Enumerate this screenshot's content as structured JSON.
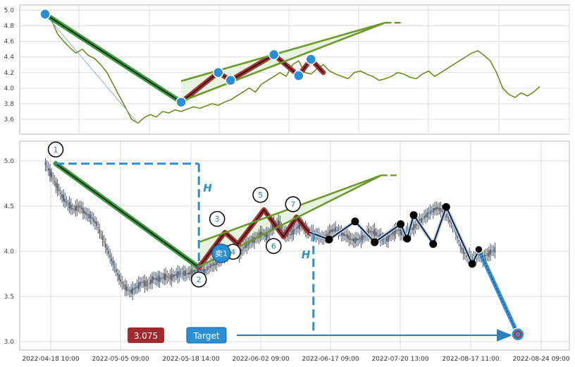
{
  "chart_data": [
    {
      "type": "line",
      "panel": "overview",
      "ylim": [
        3.5,
        5.05
      ],
      "y_ticks": [
        "3.6",
        "3.8",
        "4.0",
        "4.2",
        "4.4",
        "4.6",
        "4.8",
        "5.0"
      ],
      "y_tick_values": [
        3.6,
        3.8,
        4.0,
        4.2,
        4.4,
        4.6,
        4.8,
        5.0
      ],
      "series": [
        {
          "values": [
            4.95,
            4.88,
            4.7,
            4.6,
            4.52,
            4.45,
            4.5,
            4.42,
            4.38,
            4.3,
            4.2,
            4.05,
            3.9,
            3.75,
            3.6,
            3.55,
            3.62,
            3.66,
            3.63,
            3.7,
            3.68,
            3.72,
            3.7,
            3.73,
            3.76,
            3.74,
            3.77,
            3.8,
            3.78,
            3.82,
            3.85,
            3.9,
            3.95,
            4.0,
            3.95,
            4.05,
            4.1,
            4.15,
            4.2,
            4.15,
            4.3,
            4.35,
            4.2,
            4.18,
            4.25,
            4.3,
            4.22,
            4.18,
            4.15,
            4.12,
            4.2,
            4.22,
            4.18,
            4.15,
            4.1,
            4.12,
            4.15,
            4.2,
            4.18,
            4.14,
            4.12,
            4.18,
            4.22,
            4.15,
            4.2,
            4.25,
            4.3,
            4.35,
            4.4,
            4.45,
            4.48,
            4.42,
            4.35,
            4.2,
            4.0,
            3.92,
            3.88,
            3.94,
            3.9,
            3.95,
            4.02
          ]
        }
      ],
      "segments": [
        {
          "role": "swing-down",
          "color": "#3a9a3a",
          "points": [
            [
              0,
              4.95
            ],
            [
              22,
              3.82
            ]
          ]
        },
        {
          "role": "pattern",
          "color": "#a83232",
          "points": [
            [
              22,
              3.82
            ],
            [
              28,
              4.2
            ],
            [
              30,
              4.1
            ],
            [
              37,
              4.43
            ],
            [
              41,
              4.16
            ],
            [
              43,
              4.37
            ],
            [
              45,
              4.2
            ]
          ]
        },
        {
          "role": "channel-upper",
          "color": "#6b9a2a",
          "points": [
            [
              22,
              4.09
            ],
            [
              55,
              4.84
            ]
          ]
        },
        {
          "role": "channel-lower",
          "color": "#6b9a2a",
          "points": [
            [
              22,
              3.83
            ],
            [
              55,
              4.84
            ]
          ]
        }
      ],
      "pivots": [
        {
          "x": 0,
          "y": 4.95
        },
        {
          "x": 22,
          "y": 3.82
        },
        {
          "x": 28,
          "y": 4.2
        },
        {
          "x": 30,
          "y": 4.1
        },
        {
          "x": 37,
          "y": 4.43
        },
        {
          "x": 41,
          "y": 4.16
        },
        {
          "x": 43,
          "y": 4.37
        }
      ]
    },
    {
      "type": "candlestick",
      "panel": "main",
      "ylim": [
        2.95,
        5.2
      ],
      "y_ticks": [
        "3.0",
        "3.5",
        "4.0",
        "4.5",
        "5.0"
      ],
      "y_tick_values": [
        3.0,
        3.5,
        4.0,
        4.5,
        5.0
      ],
      "x_ticks": [
        "2022-04-18 10:00",
        "2022-05-05 09:00",
        "2022-05-18 14:00",
        "2022-06-02 09:00",
        "2022-06-17 09:00",
        "2022-07-20 13:00",
        "2022-08-17 11:00",
        "2022-08-24 09:00"
      ],
      "price": [
        4.97,
        4.85,
        4.72,
        4.6,
        4.52,
        4.46,
        4.5,
        4.42,
        4.38,
        4.3,
        4.15,
        4.0,
        3.85,
        3.7,
        3.6,
        3.55,
        3.6,
        3.66,
        3.63,
        3.7,
        3.69,
        3.72,
        3.71,
        3.74,
        3.76,
        3.75,
        3.78,
        3.8,
        3.78,
        3.84,
        3.86,
        3.93,
        3.98,
        4.02,
        3.96,
        4.05,
        4.1,
        4.14,
        4.2,
        4.16,
        4.28,
        4.32,
        4.2,
        4.18,
        4.25,
        4.3,
        4.22,
        4.2,
        4.17,
        4.14,
        4.22,
        4.24,
        4.2,
        4.17,
        4.12,
        4.13,
        4.16,
        4.22,
        4.2,
        4.15,
        4.13,
        4.2,
        4.24,
        4.18,
        4.22,
        4.28,
        4.34,
        4.4,
        4.45,
        4.48,
        4.43,
        4.36,
        4.24,
        4.05,
        3.95,
        3.92,
        3.96,
        3.93,
        3.98,
        4.02
      ],
      "segments": [
        {
          "role": "swing-down",
          "color": "#3a9a3a",
          "points": [
            [
              0,
              4.97
            ],
            [
              22,
              3.82
            ]
          ]
        },
        {
          "role": "pattern",
          "color": "#a83232",
          "points": [
            [
              22,
              3.82
            ],
            [
              26,
              4.21
            ],
            [
              28,
              4.08
            ],
            [
              32,
              4.46
            ],
            [
              35,
              4.16
            ],
            [
              37,
              4.38
            ],
            [
              39,
              4.2
            ]
          ]
        },
        {
          "role": "channel-upper",
          "color": "#6b9a2a",
          "points": [
            [
              22,
              4.1
            ],
            [
              50,
              4.84
            ]
          ]
        },
        {
          "role": "channel-lower",
          "color": "#6b9a2a",
          "points": [
            [
              22,
              3.83
            ],
            [
              50,
              4.84
            ]
          ]
        },
        {
          "role": "projection",
          "color": "#0f1a2c",
          "points": [
            [
              39,
              4.21
            ],
            [
              42,
              4.13
            ],
            [
              46,
              4.33
            ],
            [
              49,
              4.1
            ],
            [
              53,
              4.3
            ],
            [
              54,
              4.14
            ],
            [
              55,
              4.4
            ],
            [
              58,
              4.08
            ],
            [
              60,
              4.49
            ],
            [
              64,
              3.86
            ],
            [
              65,
              4.01
            ]
          ]
        },
        {
          "role": "target-path",
          "color": "#3b8fd6",
          "points": [
            [
              65,
              4.02
            ],
            [
              71,
              3.08
            ]
          ]
        }
      ],
      "pivot_labels": [
        {
          "label": "1",
          "x": 0,
          "y": 4.97
        },
        {
          "label": "2",
          "x": 22,
          "y": 3.82
        },
        {
          "label": "3",
          "x": 26,
          "y": 4.21
        },
        {
          "label": "4",
          "x": 28,
          "y": 4.08
        },
        {
          "label": "5",
          "x": 32,
          "y": 4.46
        },
        {
          "label": "6",
          "x": 35,
          "y": 4.16
        },
        {
          "label": "7",
          "x": 37,
          "y": 4.38
        }
      ],
      "projection_points": [
        {
          "x": 42,
          "y": 4.13
        },
        {
          "x": 46,
          "y": 4.33
        },
        {
          "x": 49,
          "y": 4.1
        },
        {
          "x": 53,
          "y": 4.3
        },
        {
          "x": 54,
          "y": 4.14
        },
        {
          "x": 55,
          "y": 4.4
        },
        {
          "x": 58,
          "y": 4.08
        },
        {
          "x": 60,
          "y": 4.49
        },
        {
          "x": 64,
          "y": 3.86
        },
        {
          "x": 65,
          "y": 4.01
        }
      ],
      "annotations": {
        "signal": "卖1",
        "height_marker": "H",
        "price_badge": "3.075",
        "target_button": "Target",
        "target_price": 3.075
      }
    }
  ]
}
